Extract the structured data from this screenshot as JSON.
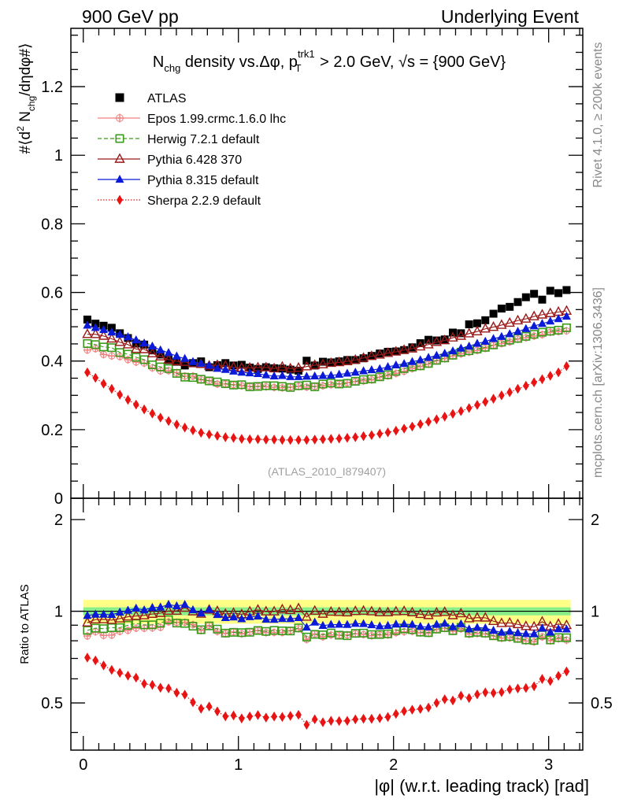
{
  "header": {
    "left": "900 GeV pp",
    "right": "Underlying Event"
  },
  "side_labels": {
    "right_top": "Rivet 4.1.0, ≥ 200k events",
    "right_bottom": "mcplots.cern.ch [arXiv:1306.3436]"
  },
  "chart_data": {
    "type": "scatter",
    "title_text": "Nchg density vs.Δφ, pTtrk1 > 2.0 GeV, √s = {900 GeV}",
    "analysis_label": "(ATLAS_2010_I879407)",
    "xlabel": "|φ| (w.r.t. leading track) [rad]",
    "ylabel": "#⟨d² Nchg/dηdφ#⟩",
    "ratio_ylabel": "Ratio to ATLAS",
    "xlim": [
      -0.08,
      3.22
    ],
    "ylim": [
      0,
      1.37
    ],
    "ratio_ylim": [
      0.35,
      2.35
    ],
    "x_ticks": [
      "0",
      "1",
      "2",
      "3"
    ],
    "y_ticks": [
      "0",
      "0.2",
      "0.4",
      "0.6",
      "0.8",
      "1",
      "1.2"
    ],
    "ratio_ticks": [
      "0.5",
      "1",
      "2"
    ],
    "band_halfwidth": {
      "stat": 0.03,
      "total": 0.09
    },
    "series": [
      {
        "name": "ATLAS",
        "color": "#000000",
        "marker": "square-filled",
        "line": "none",
        "values": [
          0.521,
          0.509,
          0.503,
          0.497,
          0.481,
          0.467,
          0.451,
          0.448,
          0.431,
          0.419,
          0.403,
          0.398,
          0.387,
          0.394,
          0.399,
          0.382,
          0.388,
          0.394,
          0.387,
          0.389,
          0.381,
          0.377,
          0.382,
          0.379,
          0.378,
          0.375,
          0.372,
          0.401,
          0.387,
          0.398,
          0.396,
          0.399,
          0.403,
          0.403,
          0.408,
          0.415,
          0.422,
          0.427,
          0.428,
          0.432,
          0.44,
          0.452,
          0.462,
          0.46,
          0.463,
          0.483,
          0.481,
          0.507,
          0.51,
          0.519,
          0.538,
          0.553,
          0.558,
          0.572,
          0.586,
          0.596,
          0.579,
          0.605,
          0.598,
          0.607
        ]
      },
      {
        "name": "Epos 1.99.crmc.1.6.0 lhc",
        "color": "#f08080",
        "marker": "cross",
        "line": "solid",
        "values": [
          0.432,
          0.436,
          0.419,
          0.415,
          0.413,
          0.404,
          0.397,
          0.394,
          0.38,
          0.371,
          0.372,
          0.366,
          0.356,
          0.356,
          0.345,
          0.343,
          0.333,
          0.333,
          0.331,
          0.328,
          0.326,
          0.326,
          0.325,
          0.323,
          0.322,
          0.324,
          0.326,
          0.324,
          0.326,
          0.328,
          0.331,
          0.333,
          0.337,
          0.34,
          0.342,
          0.345,
          0.353,
          0.357,
          0.364,
          0.37,
          0.378,
          0.384,
          0.391,
          0.401,
          0.407,
          0.415,
          0.421,
          0.426,
          0.431,
          0.437,
          0.446,
          0.451,
          0.456,
          0.464,
          0.468,
          0.473,
          0.477,
          0.484,
          0.486,
          0.488
        ]
      },
      {
        "name": "Herwig 7.2.1 default",
        "color": "#3a9a1a",
        "marker": "square-open",
        "line": "dashed",
        "values": [
          0.451,
          0.448,
          0.441,
          0.439,
          0.425,
          0.42,
          0.411,
          0.404,
          0.389,
          0.383,
          0.378,
          0.364,
          0.353,
          0.352,
          0.347,
          0.342,
          0.339,
          0.334,
          0.33,
          0.331,
          0.325,
          0.326,
          0.328,
          0.328,
          0.326,
          0.323,
          0.328,
          0.33,
          0.325,
          0.333,
          0.336,
          0.333,
          0.335,
          0.341,
          0.346,
          0.348,
          0.354,
          0.36,
          0.37,
          0.378,
          0.383,
          0.386,
          0.393,
          0.402,
          0.409,
          0.417,
          0.426,
          0.43,
          0.435,
          0.44,
          0.447,
          0.455,
          0.461,
          0.466,
          0.472,
          0.478,
          0.484,
          0.487,
          0.49,
          0.497
        ]
      },
      {
        "name": "Pythia 6.428 370",
        "color": "#9a1a1a",
        "marker": "triangle-open",
        "line": "solid",
        "values": [
          0.478,
          0.478,
          0.473,
          0.465,
          0.455,
          0.448,
          0.435,
          0.434,
          0.422,
          0.413,
          0.404,
          0.399,
          0.397,
          0.393,
          0.391,
          0.386,
          0.388,
          0.386,
          0.382,
          0.38,
          0.38,
          0.381,
          0.381,
          0.378,
          0.383,
          0.378,
          0.38,
          0.384,
          0.388,
          0.39,
          0.394,
          0.396,
          0.399,
          0.403,
          0.409,
          0.414,
          0.418,
          0.423,
          0.427,
          0.432,
          0.436,
          0.442,
          0.448,
          0.455,
          0.46,
          0.468,
          0.473,
          0.48,
          0.486,
          0.494,
          0.499,
          0.505,
          0.511,
          0.518,
          0.523,
          0.53,
          0.535,
          0.539,
          0.543,
          0.546
        ]
      },
      {
        "name": "Pythia 8.315 default",
        "color": "#0a1ad8",
        "marker": "triangle-filled",
        "line": "solid",
        "values": [
          0.504,
          0.497,
          0.491,
          0.484,
          0.477,
          0.47,
          0.461,
          0.452,
          0.443,
          0.432,
          0.424,
          0.414,
          0.407,
          0.398,
          0.393,
          0.387,
          0.378,
          0.375,
          0.37,
          0.367,
          0.365,
          0.363,
          0.359,
          0.356,
          0.357,
          0.354,
          0.354,
          0.355,
          0.356,
          0.357,
          0.358,
          0.361,
          0.364,
          0.367,
          0.371,
          0.374,
          0.377,
          0.383,
          0.388,
          0.392,
          0.398,
          0.403,
          0.41,
          0.416,
          0.422,
          0.429,
          0.437,
          0.443,
          0.451,
          0.457,
          0.465,
          0.471,
          0.479,
          0.486,
          0.494,
          0.502,
          0.509,
          0.516,
          0.523,
          0.53
        ]
      },
      {
        "name": "Sherpa 2.2.9 default",
        "color": "#e81414",
        "marker": "diamond-filled",
        "line": "dotted",
        "values": [
          0.367,
          0.351,
          0.334,
          0.319,
          0.302,
          0.287,
          0.273,
          0.259,
          0.247,
          0.235,
          0.225,
          0.215,
          0.206,
          0.198,
          0.191,
          0.186,
          0.182,
          0.178,
          0.176,
          0.173,
          0.172,
          0.172,
          0.171,
          0.171,
          0.17,
          0.17,
          0.17,
          0.17,
          0.171,
          0.172,
          0.173,
          0.174,
          0.176,
          0.178,
          0.181,
          0.184,
          0.188,
          0.192,
          0.197,
          0.203,
          0.209,
          0.216,
          0.223,
          0.23,
          0.238,
          0.246,
          0.254,
          0.263,
          0.272,
          0.281,
          0.29,
          0.3,
          0.309,
          0.319,
          0.328,
          0.338,
          0.347,
          0.357,
          0.367,
          0.385
        ]
      }
    ]
  }
}
